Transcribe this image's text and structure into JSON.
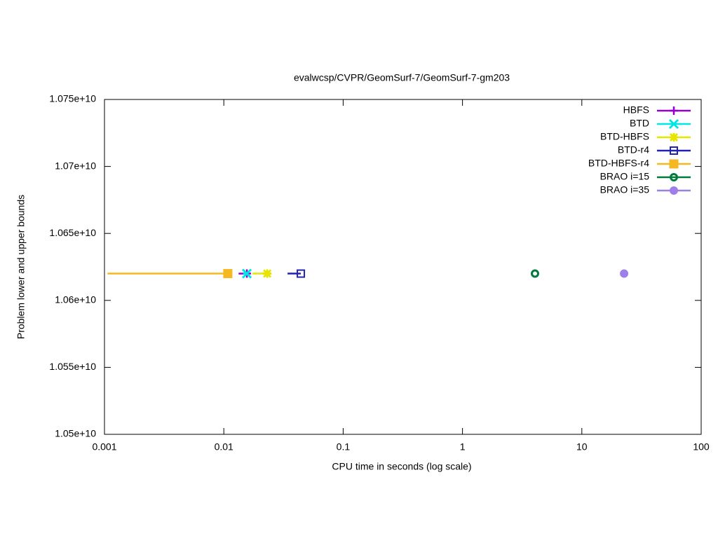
{
  "chart_data": {
    "type": "line",
    "title": "evalwcsp/CVPR/GeomSurf-7/GeomSurf-7-gm203",
    "xlabel": "CPU time in seconds (log scale)",
    "ylabel": "Problem lower and upper bounds",
    "xscale": "log",
    "xlim": [
      0.001,
      100
    ],
    "xticks": [
      0.001,
      0.01,
      0.1,
      1,
      10,
      100
    ],
    "ylim": [
      10500000000,
      10750000000
    ],
    "yticks": [
      {
        "value": 10500000000,
        "label": "1.05e+10"
      },
      {
        "value": 10550000000,
        "label": "1.055e+10"
      },
      {
        "value": 10600000000,
        "label": "1.06e+10"
      },
      {
        "value": 10650000000,
        "label": "1.065e+10"
      },
      {
        "value": 10700000000,
        "label": "1.07e+10"
      },
      {
        "value": 10750000000,
        "label": "1.075e+10"
      }
    ],
    "legend": "top right",
    "series": [
      {
        "name": "HBFS",
        "color": "#9400d3",
        "marker": "plus",
        "x": [
          0.0133,
          0.0156
        ],
        "values": [
          10620000000,
          10620000000
        ]
      },
      {
        "name": "BTD",
        "color": "#00e5e5",
        "marker": "cross",
        "x": [
          0.0145,
          0.0156
        ],
        "values": [
          10620000000,
          10620000000
        ]
      },
      {
        "name": "BTD-HBFS",
        "color": "#e5e500",
        "marker": "star",
        "x": [
          0.0174,
          0.0231
        ],
        "values": [
          10620000000,
          10620000000
        ]
      },
      {
        "name": "BTD-r4",
        "color": "#2222b0",
        "marker": "open-square",
        "x": [
          0.0342,
          0.0442
        ],
        "values": [
          10620000000,
          10620000000
        ]
      },
      {
        "name": "BTD-HBFS-r4",
        "color": "#f5b820",
        "marker": "square",
        "x": [
          0.00106,
          0.0108
        ],
        "values": [
          10620000000,
          10620000000
        ]
      },
      {
        "name": "BRAO i=15",
        "color": "#007a3d",
        "marker": "circle-dot",
        "x": [
          4.05
        ],
        "values": [
          10620000000
        ]
      },
      {
        "name": "BRAO i=35",
        "color": "#9c7fe8",
        "marker": "circle",
        "x": [
          22.6
        ],
        "values": [
          10620000000
        ]
      }
    ]
  }
}
